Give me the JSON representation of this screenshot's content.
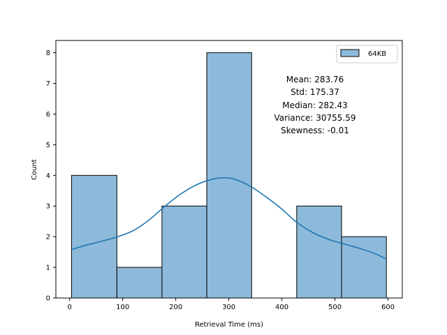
{
  "chart_data": {
    "type": "bar",
    "subtype": "histogram-with-kde",
    "series": [
      {
        "name": "64KB",
        "color": "#8dbadb",
        "edge_color": "#000000"
      }
    ],
    "bins": [
      {
        "x0": 3.5,
        "x1": 89.0,
        "count": 4
      },
      {
        "x0": 89.0,
        "x1": 174.0,
        "count": 1
      },
      {
        "x0": 174.0,
        "x1": 258.5,
        "count": 3
      },
      {
        "x0": 258.5,
        "x1": 343.0,
        "count": 8
      },
      {
        "x0": 343.0,
        "x1": 428.0,
        "count": 0
      },
      {
        "x0": 428.0,
        "x1": 512.5,
        "count": 3
      },
      {
        "x0": 512.5,
        "x1": 597.0,
        "count": 2
      }
    ],
    "kde": {
      "color": "#1f77b4",
      "points": [
        [
          3.5,
          1.58
        ],
        [
          30,
          1.72
        ],
        [
          60,
          1.85
        ],
        [
          89,
          1.99
        ],
        [
          120,
          2.2
        ],
        [
          150,
          2.55
        ],
        [
          180,
          3.0
        ],
        [
          210,
          3.4
        ],
        [
          240,
          3.7
        ],
        [
          270,
          3.88
        ],
        [
          290,
          3.92
        ],
        [
          310,
          3.88
        ],
        [
          340,
          3.65
        ],
        [
          370,
          3.3
        ],
        [
          400,
          2.9
        ],
        [
          428,
          2.47
        ],
        [
          460,
          2.12
        ],
        [
          490,
          1.9
        ],
        [
          520,
          1.75
        ],
        [
          550,
          1.6
        ],
        [
          575,
          1.45
        ],
        [
          597,
          1.27
        ]
      ]
    },
    "xlabel": "Retrieval Time (ms)",
    "ylabel": "Count",
    "xlim": [
      -26,
      627
    ],
    "ylim": [
      0,
      8.4
    ],
    "xticks": [
      0,
      100,
      200,
      300,
      400,
      500,
      600
    ],
    "yticks": [
      0,
      1,
      2,
      3,
      4,
      5,
      6,
      7,
      8
    ],
    "grid": false,
    "legend_position": "top-right",
    "annotation_lines": [
      "Mean: 283.76",
      "Std: 175.37",
      "Median: 282.43",
      "Variance: 30755.59",
      "Skewness: -0.01"
    ]
  }
}
